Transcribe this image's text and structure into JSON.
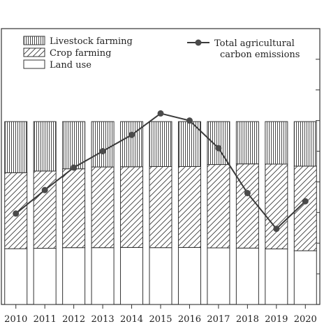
{
  "chart_data": {
    "type": "bar",
    "stacked": true,
    "categories": [
      "2010",
      "2011",
      "2012",
      "2013",
      "2014",
      "2015",
      "2016",
      "2017",
      "2018",
      "2019",
      "2020"
    ],
    "series": [
      {
        "name": "Land use",
        "values": [
          27.3,
          27.5,
          27.8,
          27.8,
          27.9,
          27.8,
          27.9,
          27.7,
          27.6,
          27.2,
          26.3
        ]
      },
      {
        "name": "Crop farming",
        "values": [
          37.2,
          37.8,
          38.6,
          39.5,
          39.5,
          39.7,
          39.6,
          40.8,
          41.2,
          41.5,
          41.4
        ]
      },
      {
        "name": "Livestock farming",
        "values": [
          25.0,
          24.2,
          23.1,
          22.2,
          22.1,
          22.0,
          22.0,
          21.0,
          20.7,
          20.8,
          21.8
        ]
      }
    ],
    "line_series": {
      "name": "Total agricultural carbon emissions",
      "values": [
        44.5,
        56.0,
        67.0,
        75.0,
        83.0,
        93.5,
        90.0,
        76.5,
        54.5,
        37.0,
        50.5
      ]
    },
    "ylim": [
      0,
      135
    ],
    "legend_left": [
      "Livestock farming",
      "Crop farming",
      "Land use"
    ],
    "legend_right_lines": [
      "Total agricultural",
      "carbon emissions"
    ],
    "colors": {
      "ink": "#333333",
      "line": "#3a3a3a",
      "marker": "#4a4a4a",
      "bg": "#ffffff"
    }
  }
}
